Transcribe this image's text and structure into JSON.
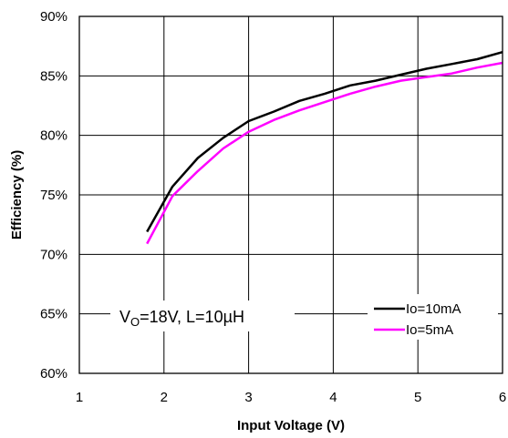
{
  "chart_data": {
    "type": "line",
    "xlabel": "Input Voltage (V)",
    "ylabel": "Efficiency (%)",
    "xlim": [
      1,
      6
    ],
    "ylim": [
      60,
      90
    ],
    "x_ticks": [
      "1",
      "2",
      "3",
      "4",
      "5",
      "6"
    ],
    "y_ticks": [
      "60%",
      "65%",
      "70%",
      "75%",
      "80%",
      "85%",
      "90%"
    ],
    "grid": true,
    "legend_position": "bottom-right",
    "annotation": {
      "main": "V",
      "sub": "O",
      "rest": "=18V, L=10µH"
    },
    "series": [
      {
        "name": "Io=10mA",
        "color": "#000000",
        "x": [
          1.8,
          2.1,
          2.4,
          2.7,
          3.0,
          3.3,
          3.6,
          3.9,
          4.2,
          4.5,
          4.8,
          5.1,
          5.4,
          5.7,
          6.0
        ],
        "y": [
          71.9,
          75.7,
          78.1,
          79.8,
          81.2,
          82.0,
          82.9,
          83.5,
          84.2,
          84.6,
          85.1,
          85.6,
          86.0,
          86.4,
          87.0
        ]
      },
      {
        "name": "Io=5mA",
        "color": "#ff00ff",
        "x": [
          1.8,
          2.1,
          2.4,
          2.7,
          3.0,
          3.3,
          3.6,
          3.9,
          4.2,
          4.5,
          4.8,
          5.1,
          5.4,
          5.7,
          6.0
        ],
        "y": [
          70.9,
          74.9,
          77.0,
          78.9,
          80.3,
          81.3,
          82.1,
          82.8,
          83.5,
          84.1,
          84.6,
          84.9,
          85.2,
          85.7,
          86.1
        ]
      }
    ]
  }
}
